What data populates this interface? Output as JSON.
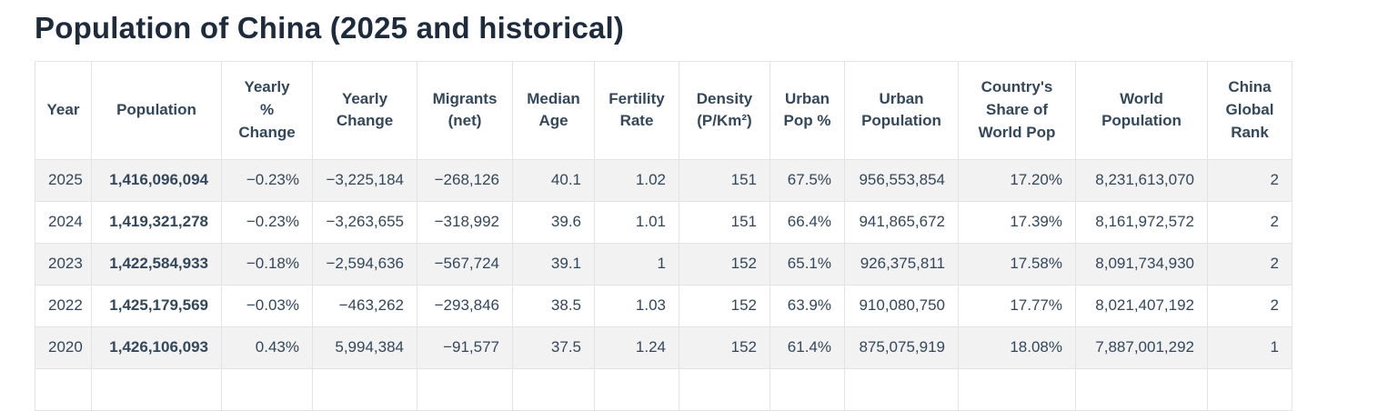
{
  "page": {
    "title": "Population of China (2025 and historical)"
  },
  "chart_data": {
    "type": "table",
    "title": "Population of China (2025 and historical)",
    "columns": [
      "Year",
      "Population",
      "Yearly % Change",
      "Yearly Change",
      "Migrants (net)",
      "Median Age",
      "Fertility Rate",
      "Density (P/Km²)",
      "Urban Pop %",
      "Urban Population",
      "Country's Share of World Pop",
      "World Population",
      "China Global Rank"
    ],
    "rows": [
      [
        "2025",
        "1,416,096,094",
        "−0.23%",
        "−3,225,184",
        "−268,126",
        "40.1",
        "1.02",
        "151",
        "67.5%",
        "956,553,854",
        "17.20%",
        "8,231,613,070",
        "2"
      ],
      [
        "2024",
        "1,419,321,278",
        "−0.23%",
        "−3,263,655",
        "−318,992",
        "39.6",
        "1.01",
        "151",
        "66.4%",
        "941,865,672",
        "17.39%",
        "8,161,972,572",
        "2"
      ],
      [
        "2023",
        "1,422,584,933",
        "−0.18%",
        "−2,594,636",
        "−567,724",
        "39.1",
        "1",
        "152",
        "65.1%",
        "926,375,811",
        "17.58%",
        "8,091,734,930",
        "2"
      ],
      [
        "2022",
        "1,425,179,569",
        "−0.03%",
        "−463,262",
        "−293,846",
        "38.5",
        "1.03",
        "152",
        "63.9%",
        "910,080,750",
        "17.77%",
        "8,021,407,192",
        "2"
      ],
      [
        "2020",
        "1,426,106,093",
        "0.43%",
        "5,994,384",
        "−91,577",
        "37.5",
        "1.24",
        "152",
        "61.4%",
        "875,075,919",
        "18.08%",
        "7,887,001,292",
        "1"
      ]
    ]
  },
  "table": {
    "headers": [
      "Year",
      "Population",
      "Yearly\n%\nChange",
      "Yearly\nChange",
      "Migrants\n(net)",
      "Median\nAge",
      "Fertility\nRate",
      "Density\n(P/Km²)",
      "Urban\nPop %",
      "Urban\nPopulation",
      "Country's\nShare of\nWorld Pop",
      "World\nPopulation",
      "China\nGlobal\nRank"
    ],
    "column_keys": [
      "year",
      "population",
      "yearly-pct-change",
      "yearly-change",
      "migrants-net",
      "median-age",
      "fertility-rate",
      "density",
      "urban-pop-pct",
      "urban-population",
      "share-of-world-pop",
      "world-population",
      "china-global-rank"
    ],
    "rows": [
      {
        "cells": [
          "2025",
          "1,416,096,094",
          "−0.23%",
          "−3,225,184",
          "−268,126",
          "40.1",
          "1.02",
          "151",
          "67.5%",
          "956,553,854",
          "17.20%",
          "8,231,613,070",
          "2"
        ]
      },
      {
        "cells": [
          "2024",
          "1,419,321,278",
          "−0.23%",
          "−3,263,655",
          "−318,992",
          "39.6",
          "1.01",
          "151",
          "66.4%",
          "941,865,672",
          "17.39%",
          "8,161,972,572",
          "2"
        ]
      },
      {
        "cells": [
          "2023",
          "1,422,584,933",
          "−0.18%",
          "−2,594,636",
          "−567,724",
          "39.1",
          "1",
          "152",
          "65.1%",
          "926,375,811",
          "17.58%",
          "8,091,734,930",
          "2"
        ]
      },
      {
        "cells": [
          "2022",
          "1,425,179,569",
          "−0.03%",
          "−463,262",
          "−293,846",
          "38.5",
          "1.03",
          "152",
          "63.9%",
          "910,080,750",
          "17.77%",
          "8,021,407,192",
          "2"
        ]
      },
      {
        "cells": [
          "2020",
          "1,426,106,093",
          "0.43%",
          "5,994,384",
          "−91,577",
          "37.5",
          "1.24",
          "152",
          "61.4%",
          "875,075,919",
          "18.08%",
          "7,887,001,292",
          "1"
        ]
      }
    ]
  }
}
